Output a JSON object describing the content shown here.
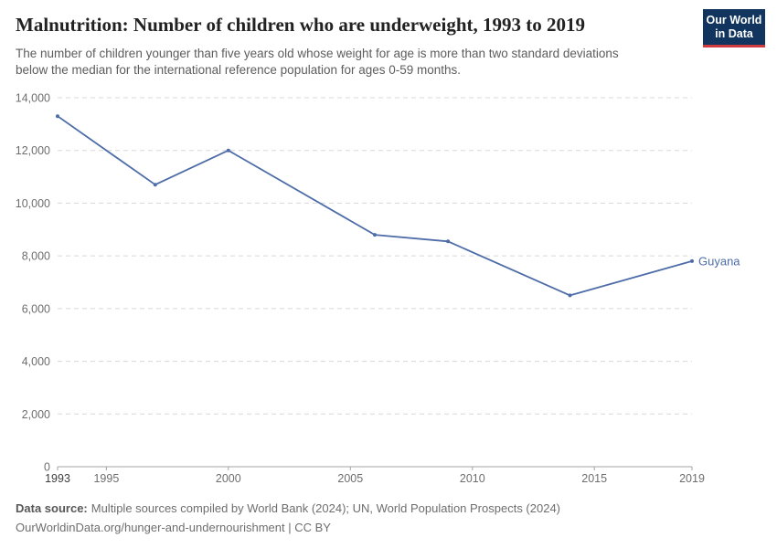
{
  "header": {
    "title": "Malnutrition: Number of children who are underweight, 1993 to 2019",
    "subtitle_line1": "The number of children younger than five years old whose weight for age is more than two standard deviations",
    "subtitle_line2": "below the median for the international reference population for ages 0-59 months.",
    "logo": {
      "line1": "Our World",
      "line2": "in Data",
      "bg": "#12355f",
      "accent": "#cf3b3f"
    }
  },
  "chart_data": {
    "type": "line",
    "title": "Malnutrition: Number of children who are underweight, 1993 to 2019",
    "xlabel": "",
    "ylabel": "",
    "xlim": [
      1993,
      2019
    ],
    "ylim": [
      0,
      14000
    ],
    "xticks": [
      1993,
      1995,
      2000,
      2005,
      2010,
      2015,
      2019
    ],
    "yticks": [
      0,
      2000,
      4000,
      6000,
      8000,
      10000,
      12000,
      14000
    ],
    "ytick_labels": [
      "0",
      "2,000",
      "4,000",
      "6,000",
      "8,000",
      "10,000",
      "12,000",
      "14,000"
    ],
    "grid": "horizontal-dashed",
    "legend_position": "line-end-label",
    "series": [
      {
        "name": "Guyana",
        "color": "#4d6ca8",
        "x": [
          1993,
          1997,
          2000,
          2006,
          2009,
          2014,
          2019
        ],
        "values": [
          13300,
          10700,
          12000,
          8800,
          8550,
          6500,
          7800
        ]
      }
    ]
  },
  "footer": {
    "source_label": "Data source:",
    "source_text": "Multiple sources compiled by World Bank (2024); UN, World Population Prospects (2024)",
    "url_line": "OurWorldinData.org/hunger-and-undernourishment | CC BY"
  }
}
